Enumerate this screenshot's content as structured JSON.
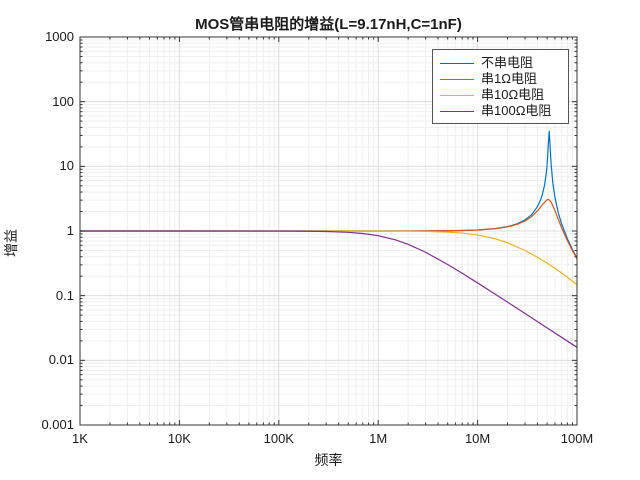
{
  "chart_data": {
    "type": "line",
    "title": "MOS管串电阻的增益(L=9.17nH,C=1nF)",
    "xlabel": "频率",
    "ylabel": "增益",
    "x_scale": "log",
    "y_scale": "log",
    "xlim": [
      1000,
      100000000
    ],
    "ylim": [
      0.001,
      1000
    ],
    "grid": "major and minor log gridlines on",
    "legend_position": "top-right inside axes, boxed",
    "x_tick_labels": [
      "1K",
      "10K",
      "100K",
      "1M",
      "10M",
      "100M"
    ],
    "x_tick_values": [
      1000,
      10000,
      100000,
      1000000,
      10000000,
      100000000
    ],
    "y_tick_labels": [
      "0.001",
      "0.01",
      "0.1",
      "1",
      "10",
      "100",
      "1000"
    ],
    "y_tick_values": [
      0.001,
      0.01,
      0.1,
      1,
      10,
      100,
      1000
    ],
    "axis_color": "#333333",
    "major_grid_color": "#dcdcdc",
    "minor_grid_color": "#efefef",
    "series": [
      {
        "name": "不串电阻",
        "color": "#0072BD",
        "points": [
          [
            1000,
            1
          ],
          [
            10000,
            1
          ],
          [
            100000,
            1
          ],
          [
            300000,
            1
          ],
          [
            1000000,
            1.0004
          ],
          [
            2000000,
            1.0015
          ],
          [
            3000000,
            1.0033
          ],
          [
            5000000,
            1.0091
          ],
          [
            7000000,
            1.0181
          ],
          [
            10000000,
            1.0376
          ],
          [
            15000000,
            1.0886
          ],
          [
            20000000,
            1.1693
          ],
          [
            25000000,
            1.2924
          ],
          [
            30000000,
            1.4831
          ],
          [
            35000000,
            1.7958
          ],
          [
            40000000,
            2.376
          ],
          [
            43000000,
            3.021
          ],
          [
            45000000,
            3.7447
          ],
          [
            47000000,
            4.985
          ],
          [
            49000000,
            7.637
          ],
          [
            50000000,
            10.513
          ],
          [
            51000000,
            17.09
          ],
          [
            51500000,
            22
          ],
          [
            52560000,
            35
          ],
          [
            53500000,
            22
          ],
          [
            54500000,
            13.2
          ],
          [
            55000000,
            10.53
          ],
          [
            57000000,
            5.678
          ],
          [
            60000000,
            3.3
          ],
          [
            65000000,
            1.888
          ],
          [
            70000000,
            1.2928
          ],
          [
            80000000,
            0.7596
          ],
          [
            90000000,
            0.5177
          ],
          [
            100000000,
            0.3818
          ]
        ]
      },
      {
        "name": "串1Ω电阻",
        "color": "#D95319",
        "points": [
          [
            1000,
            1
          ],
          [
            100000,
            1
          ],
          [
            1000000,
            1.0004
          ],
          [
            3000000,
            1.0031
          ],
          [
            5000000,
            1.0085
          ],
          [
            7000000,
            1.0166
          ],
          [
            10000000,
            1.0353
          ],
          [
            15000000,
            1.0848
          ],
          [
            20000000,
            1.1568
          ],
          [
            25000000,
            1.2665
          ],
          [
            30000000,
            1.4284
          ],
          [
            35000000,
            1.6703
          ],
          [
            40000000,
            2.04
          ],
          [
            45000000,
            2.5714
          ],
          [
            50000000,
            3.0465
          ],
          [
            52000000,
            3.0542
          ],
          [
            52560000,
            3.0279
          ],
          [
            55000000,
            2.7903
          ],
          [
            60000000,
            2.0675
          ],
          [
            65000000,
            1.4955
          ],
          [
            70000000,
            1.1238
          ],
          [
            80000000,
            0.7096
          ],
          [
            90000000,
            0.4968
          ],
          [
            100000000,
            0.3712
          ]
        ]
      },
      {
        "name": "串10Ω电阻",
        "color": "#EDB120",
        "points": [
          [
            1000,
            1
          ],
          [
            100000,
            1
          ],
          [
            500000,
            0.9999
          ],
          [
            1000000,
            0.9984
          ],
          [
            2000000,
            0.9936
          ],
          [
            3000000,
            0.9858
          ],
          [
            5000000,
            0.962
          ],
          [
            7000000,
            0.9292
          ],
          [
            10000000,
            0.8692
          ],
          [
            15000000,
            0.7598
          ],
          [
            20000000,
            0.6579
          ],
          [
            30000000,
            0.4995
          ],
          [
            40000000,
            0.3924
          ],
          [
            50000000,
            0.3182
          ],
          [
            60000000,
            0.2644
          ],
          [
            70000000,
            0.2239
          ],
          [
            80000000,
            0.1925
          ],
          [
            100000000,
            0.1469
          ]
        ]
      },
      {
        "name": "串100Ω电阻",
        "color": "#7E2F8E",
        "points": [
          [
            1000,
            1
          ],
          [
            10000,
            1
          ],
          [
            100000,
            0.998
          ],
          [
            200000,
            0.9922
          ],
          [
            300000,
            0.9827
          ],
          [
            500000,
            0.9541
          ],
          [
            700000,
            0.9155
          ],
          [
            1000000,
            0.847
          ],
          [
            1500000,
            0.728
          ],
          [
            2000000,
            0.623
          ],
          [
            3000000,
            0.469
          ],
          [
            5000000,
            0.3036
          ],
          [
            7000000,
            0.2219
          ],
          [
            10000000,
            0.1573
          ],
          [
            15000000,
            0.1056
          ],
          [
            20000000,
            0.0794
          ],
          [
            30000000,
            0.053
          ],
          [
            50000000,
            0.0318
          ],
          [
            70000000,
            0.0227
          ],
          [
            100000000,
            0.0159
          ]
        ]
      }
    ]
  }
}
